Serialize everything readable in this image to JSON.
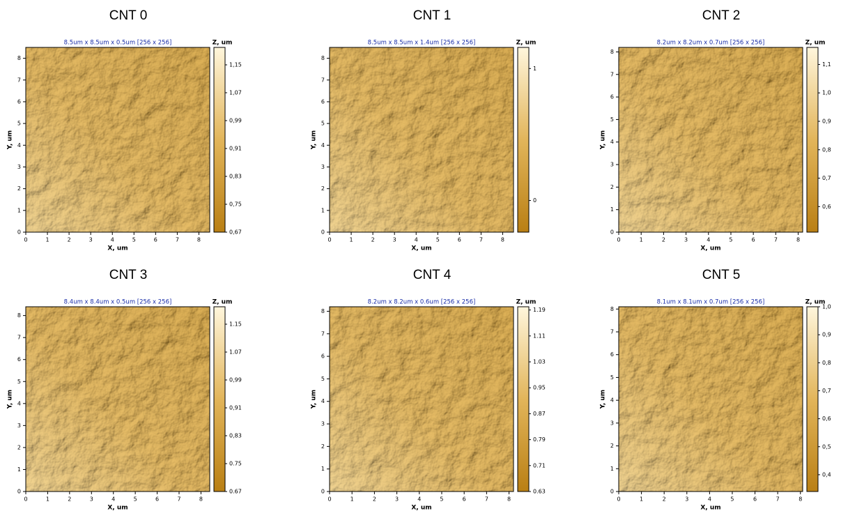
{
  "chart_data": [
    {
      "type": "afm",
      "title": "CNT 0",
      "subtitle": "8.5um x 8.5um x 0.5um [256 x 256]",
      "x_label": "X, um",
      "y_label": "Y, um",
      "z_label": "Z, um",
      "xlim": [
        0,
        8.5
      ],
      "xticks": [
        0,
        1,
        2,
        3,
        4,
        5,
        6,
        7,
        8
      ],
      "ylim": [
        0,
        8.5
      ],
      "yticks": [
        0,
        1,
        2,
        3,
        4,
        5,
        6,
        7,
        8
      ],
      "zlim": [
        0.67,
        1.2
      ],
      "zticks": [
        {
          "value": 0.67,
          "label": "0,67"
        },
        {
          "value": 0.75,
          "label": "0,75"
        },
        {
          "value": 0.83,
          "label": "0,83"
        },
        {
          "value": 0.91,
          "label": "0,91"
        },
        {
          "value": 0.99,
          "label": "0,99"
        },
        {
          "value": 1.07,
          "label": "1,07"
        },
        {
          "value": 1.15,
          "label": "1,15"
        }
      ]
    },
    {
      "type": "afm",
      "title": "CNT 1",
      "subtitle": "8.5um x 8.5um x 1.4um [256 x 256]",
      "x_label": "X, um",
      "y_label": "Y, um",
      "z_label": "Z, um",
      "xlim": [
        0,
        8.5
      ],
      "xticks": [
        0,
        1,
        2,
        3,
        4,
        5,
        6,
        7,
        8
      ],
      "ylim": [
        0,
        8.5
      ],
      "yticks": [
        0,
        1,
        2,
        3,
        4,
        5,
        6,
        7,
        8
      ],
      "zlim": [
        -0.24,
        1.16
      ],
      "zticks": [
        0,
        1
      ]
    },
    {
      "type": "afm",
      "title": "CNT 2",
      "subtitle": "8.2um x 8.2um x 0.7um [256 x 256]",
      "x_label": "X, um",
      "y_label": "Y, um",
      "z_label": "Z, um",
      "xlim": [
        0,
        8.2
      ],
      "xticks": [
        0,
        1,
        2,
        3,
        4,
        5,
        6,
        7,
        8
      ],
      "ylim": [
        0,
        8.2
      ],
      "yticks": [
        0,
        1,
        2,
        3,
        4,
        5,
        6,
        7,
        8
      ],
      "zlim": [
        0.51,
        1.16
      ],
      "zticks": [
        {
          "value": 0.6,
          "label": "0,6"
        },
        {
          "value": 0.7,
          "label": "0,7"
        },
        {
          "value": 0.8,
          "label": "0,8"
        },
        {
          "value": 0.9,
          "label": "0,9"
        },
        {
          "value": 1.0,
          "label": "1,0"
        },
        {
          "value": 1.1,
          "label": "1,1"
        }
      ]
    },
    {
      "type": "afm",
      "title": "CNT 3",
      "subtitle": "8.4um x 8.4um x 0.5um [256 x 256]",
      "x_label": "X, um",
      "y_label": "Y, um",
      "z_label": "Z, um",
      "xlim": [
        0,
        8.4
      ],
      "xticks": [
        0,
        1,
        2,
        3,
        4,
        5,
        6,
        7,
        8
      ],
      "ylim": [
        0,
        8.4
      ],
      "yticks": [
        0,
        1,
        2,
        3,
        4,
        5,
        6,
        7,
        8
      ],
      "zlim": [
        0.67,
        1.2
      ],
      "zticks": [
        {
          "value": 0.67,
          "label": "0.67"
        },
        {
          "value": 0.75,
          "label": "0.75"
        },
        {
          "value": 0.83,
          "label": "0,83"
        },
        {
          "value": 0.91,
          "label": "0,91"
        },
        {
          "value": 0.99,
          "label": "0,99"
        },
        {
          "value": 1.07,
          "label": "1.07"
        },
        {
          "value": 1.15,
          "label": "1.15"
        }
      ]
    },
    {
      "type": "afm",
      "title": "CNT 4",
      "subtitle": "8.2um x 8.2um x 0.6um [256 x 256]",
      "x_label": "X, um",
      "y_label": "Y, um",
      "z_label": "Z, um",
      "xlim": [
        0,
        8.2
      ],
      "xticks": [
        0,
        1,
        2,
        3,
        4,
        5,
        6,
        7,
        8
      ],
      "ylim": [
        0,
        8.2
      ],
      "yticks": [
        0,
        1,
        2,
        3,
        4,
        5,
        6,
        7,
        8
      ],
      "zlim": [
        0.63,
        1.2
      ],
      "zticks": [
        0.63,
        0.71,
        0.79,
        0.87,
        0.95,
        1.03,
        1.11,
        1.19
      ]
    },
    {
      "type": "afm",
      "title": "CNT 5",
      "subtitle": "8.1um x 8.1um x 0.7um [256 x 256]",
      "x_label": "X, um",
      "y_label": "Y, um",
      "z_label": "Z, um",
      "xlim": [
        0,
        8.1
      ],
      "xticks": [
        0,
        1,
        2,
        3,
        4,
        5,
        6,
        7,
        8
      ],
      "ylim": [
        0,
        8.1
      ],
      "yticks": [
        0,
        1,
        2,
        3,
        4,
        5,
        6,
        7,
        8
      ],
      "zlim": [
        0.34,
        1.0
      ],
      "zticks": [
        {
          "value": 0.4,
          "label": "0,4"
        },
        {
          "value": 0.5,
          "label": "0,5"
        },
        {
          "value": 0.6,
          "label": "0,6"
        },
        {
          "value": 0.7,
          "label": "0,7"
        },
        {
          "value": 0.8,
          "label": "0,8"
        },
        {
          "value": 0.9,
          "label": "0,9"
        },
        {
          "value": 1.0,
          "label": "1,0"
        }
      ]
    }
  ]
}
